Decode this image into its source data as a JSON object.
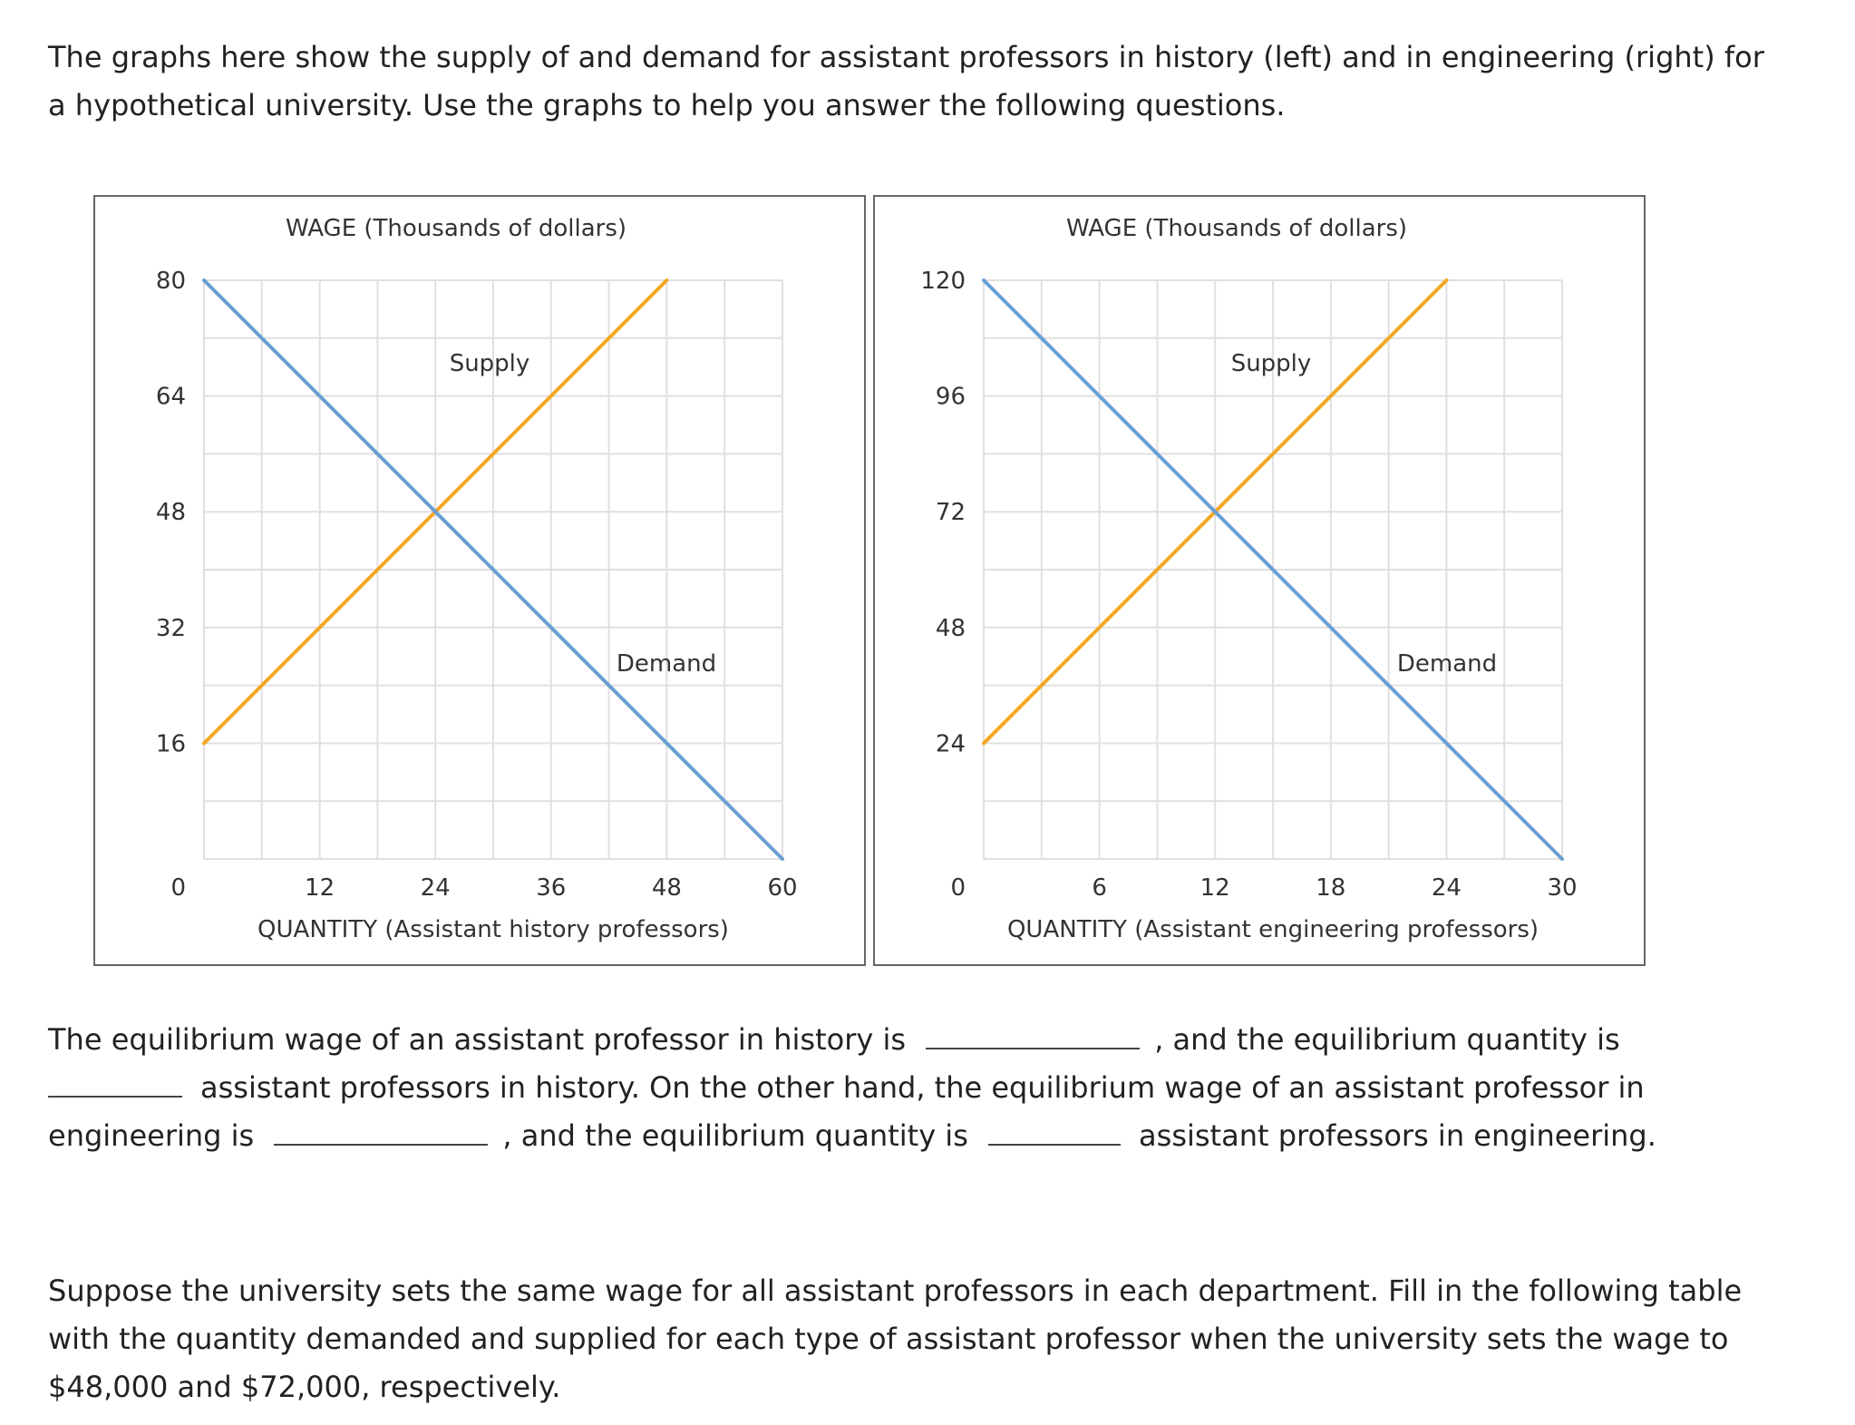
{
  "intro_text": "The graphs here show the supply of and demand for assistant professors in history (left) and in engineering (right) for a hypothetical university. Use the graphs to help you answer the following questions.",
  "chart_data": [
    {
      "type": "line",
      "title": "",
      "ylabel": "WAGE (Thousands of dollars)",
      "xlabel": "QUANTITY (Assistant history professors)",
      "xlim": [
        0,
        60
      ],
      "ylim": [
        0,
        80
      ],
      "x_ticks": [
        0,
        12,
        24,
        36,
        48,
        60
      ],
      "y_ticks": [
        0,
        16,
        32,
        48,
        64,
        80
      ],
      "grid": true,
      "series": [
        {
          "name": "Supply",
          "color": "#f5a623",
          "x": [
            0,
            48
          ],
          "y": [
            16,
            80
          ]
        },
        {
          "name": "Demand",
          "color": "#6a9fd4",
          "x": [
            0,
            60
          ],
          "y": [
            80,
            0
          ]
        }
      ]
    },
    {
      "type": "line",
      "title": "",
      "ylabel": "WAGE (Thousands of dollars)",
      "xlabel": "QUANTITY (Assistant engineering professors)",
      "xlim": [
        0,
        30
      ],
      "ylim": [
        0,
        120
      ],
      "x_ticks": [
        0,
        6,
        12,
        18,
        24,
        30
      ],
      "y_ticks": [
        0,
        24,
        48,
        72,
        96,
        120
      ],
      "grid": true,
      "series": [
        {
          "name": "Supply",
          "color": "#f5a623",
          "x": [
            0,
            24
          ],
          "y": [
            24,
            120
          ]
        },
        {
          "name": "Demand",
          "color": "#6a9fd4",
          "x": [
            0,
            30
          ],
          "y": [
            120,
            0
          ]
        }
      ]
    }
  ],
  "question": {
    "part1": "The equilibrium wage of an assistant professor in history is",
    "part2": ", and the equilibrium quantity is",
    "part3": "assistant professors in history. On the other hand, the equilibrium wage of an assistant professor in engineering is",
    "part4": ", and the equilibrium quantity is",
    "part5": "assistant professors in engineering."
  },
  "suppose_text": "Suppose the university sets the same wage for all assistant professors in each department. Fill in the following table with the quantity demanded and supplied for each type of assistant professor when the university sets the wage to $48,000 and $72,000, respectively."
}
